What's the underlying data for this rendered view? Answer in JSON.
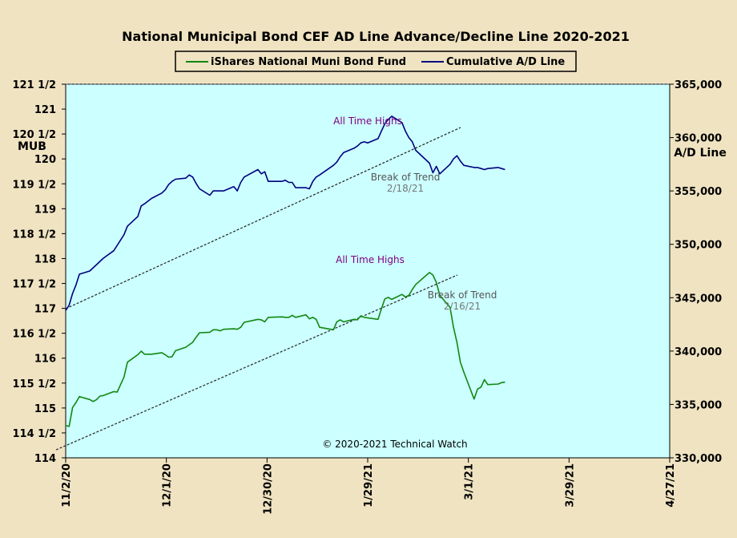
{
  "chart_data": {
    "type": "line",
    "title": "National Municipal Bond CEF AD Line Advance/Decline Line 2020-2021",
    "ylabel_left": "MUB",
    "ylabel_right": "A/D Line",
    "x_ticks": [
      "11/2/20",
      "12/1/20",
      "12/30/20",
      "1/29/21",
      "3/1/21",
      "3/29/21",
      "4/27/21"
    ],
    "x_range": [
      "2020-11-02",
      "2021-04-27"
    ],
    "y_left_ticks": [
      "114",
      "114 1/2",
      "115",
      "115 1/2",
      "116",
      "116 1/2",
      "117",
      "117 1/2",
      "118",
      "118 1/2",
      "119",
      "119 1/2",
      "120",
      "120 1/2",
      "121",
      "121 1/2"
    ],
    "y_left_range": [
      114,
      121.5
    ],
    "y_right_ticks": [
      "330,000",
      "335,000",
      "340,000",
      "345,000",
      "350,000",
      "355,000",
      "360,000",
      "365,000"
    ],
    "y_right_range": [
      330000,
      365000
    ],
    "legend": [
      "iShares National Muni Bond Fund",
      "Cumulative A/D Line"
    ],
    "legend_position": "top-center",
    "grid": false,
    "colors": {
      "muni": "#118811",
      "ad": "#000080",
      "plot_bg": "#ccffff",
      "page_bg": "#efe3c2",
      "annotation": "#800080",
      "break_text": "#555555",
      "break_date": "#777777"
    },
    "series": [
      {
        "name": "iShares National Muni Bond Fund",
        "axis": "left",
        "x": [
          "2020-11-02",
          "2020-11-03",
          "2020-11-04",
          "2020-11-05",
          "2020-11-06",
          "2020-11-09",
          "2020-11-10",
          "2020-11-11",
          "2020-11-12",
          "2020-11-13",
          "2020-11-16",
          "2020-11-17",
          "2020-11-18",
          "2020-11-19",
          "2020-11-20",
          "2020-11-23",
          "2020-11-24",
          "2020-11-25",
          "2020-11-27",
          "2020-11-30",
          "2020-12-01",
          "2020-12-02",
          "2020-12-03",
          "2020-12-04",
          "2020-12-07",
          "2020-12-08",
          "2020-12-09",
          "2020-12-10",
          "2020-12-11",
          "2020-12-14",
          "2020-12-15",
          "2020-12-16",
          "2020-12-17",
          "2020-12-18",
          "2020-12-21",
          "2020-12-22",
          "2020-12-23",
          "2020-12-24",
          "2020-12-28",
          "2020-12-29",
          "2020-12-30",
          "2020-12-31",
          "2021-01-04",
          "2021-01-05",
          "2021-01-06",
          "2021-01-07",
          "2021-01-08",
          "2021-01-11",
          "2021-01-12",
          "2021-01-13",
          "2021-01-14",
          "2021-01-15",
          "2021-01-19",
          "2021-01-20",
          "2021-01-21",
          "2021-01-22",
          "2021-01-25",
          "2021-01-26",
          "2021-01-27",
          "2021-01-28",
          "2021-01-29",
          "2021-02-01",
          "2021-02-02",
          "2021-02-03",
          "2021-02-04",
          "2021-02-05",
          "2021-02-08",
          "2021-02-09",
          "2021-02-10",
          "2021-02-11",
          "2021-02-12",
          "2021-02-16",
          "2021-02-17",
          "2021-02-18",
          "2021-02-19",
          "2021-02-22",
          "2021-02-23",
          "2021-02-24",
          "2021-02-25",
          "2021-02-26",
          "2021-03-01",
          "2021-03-02",
          "2021-03-03",
          "2021-03-04",
          "2021-03-05",
          "2021-03-08",
          "2021-03-09",
          "2021-03-10"
        ],
        "values": [
          114.65,
          114.63,
          115.01,
          115.11,
          115.23,
          115.17,
          115.13,
          115.17,
          115.24,
          115.25,
          115.33,
          115.32,
          115.47,
          115.62,
          115.92,
          116.07,
          116.14,
          116.08,
          116.08,
          116.11,
          116.07,
          116.02,
          116.03,
          116.15,
          116.22,
          116.27,
          116.32,
          116.42,
          116.51,
          116.52,
          116.57,
          116.57,
          116.55,
          116.58,
          116.59,
          116.58,
          116.62,
          116.72,
          116.78,
          116.77,
          116.73,
          116.82,
          116.83,
          116.82,
          116.82,
          116.86,
          116.82,
          116.87,
          116.79,
          116.82,
          116.78,
          116.62,
          116.57,
          116.73,
          116.77,
          116.73,
          116.78,
          116.77,
          116.85,
          116.82,
          116.81,
          116.78,
          116.99,
          117.19,
          117.22,
          117.18,
          117.28,
          117.23,
          117.26,
          117.38,
          117.48,
          117.72,
          117.67,
          117.52,
          117.26,
          117.02,
          116.62,
          116.32,
          115.92,
          115.72,
          115.18,
          115.38,
          115.42,
          115.57,
          115.47,
          115.48,
          115.51,
          115.52
        ]
      },
      {
        "name": "Cumulative A/D Line",
        "axis": "right",
        "x": [
          "2020-11-02",
          "2020-11-03",
          "2020-11-04",
          "2020-11-05",
          "2020-11-06",
          "2020-11-09",
          "2020-11-10",
          "2020-11-11",
          "2020-11-12",
          "2020-11-13",
          "2020-11-16",
          "2020-11-17",
          "2020-11-18",
          "2020-11-19",
          "2020-11-20",
          "2020-11-23",
          "2020-11-24",
          "2020-11-25",
          "2020-11-27",
          "2020-11-30",
          "2020-12-01",
          "2020-12-02",
          "2020-12-03",
          "2020-12-04",
          "2020-12-07",
          "2020-12-08",
          "2020-12-09",
          "2020-12-10",
          "2020-12-11",
          "2020-12-14",
          "2020-12-15",
          "2020-12-16",
          "2020-12-17",
          "2020-12-18",
          "2020-12-21",
          "2020-12-22",
          "2020-12-23",
          "2020-12-24",
          "2020-12-28",
          "2020-12-29",
          "2020-12-30",
          "2020-12-31",
          "2021-01-04",
          "2021-01-05",
          "2021-01-06",
          "2021-01-07",
          "2021-01-08",
          "2021-01-11",
          "2021-01-12",
          "2021-01-13",
          "2021-01-14",
          "2021-01-15",
          "2021-01-19",
          "2021-01-20",
          "2021-01-21",
          "2021-01-22",
          "2021-01-25",
          "2021-01-26",
          "2021-01-27",
          "2021-01-28",
          "2021-01-29",
          "2021-02-01",
          "2021-02-02",
          "2021-02-03",
          "2021-02-04",
          "2021-02-05",
          "2021-02-08",
          "2021-02-09",
          "2021-02-10",
          "2021-02-11",
          "2021-02-12",
          "2021-02-16",
          "2021-02-17",
          "2021-02-18",
          "2021-02-19",
          "2021-02-22",
          "2021-02-23",
          "2021-02-24",
          "2021-02-25",
          "2021-02-26",
          "2021-03-01",
          "2021-03-02",
          "2021-03-03",
          "2021-03-04",
          "2021-03-05",
          "2021-03-08",
          "2021-03-09",
          "2021-03-10"
        ],
        "values": [
          343800,
          344300,
          345400,
          346200,
          347200,
          347500,
          347800,
          348100,
          348400,
          348700,
          349400,
          349900,
          350400,
          350900,
          351700,
          352600,
          353600,
          353800,
          354300,
          354800,
          355100,
          355600,
          355900,
          356100,
          356200,
          356500,
          356300,
          355700,
          355200,
          354600,
          355000,
          355000,
          355000,
          355000,
          355400,
          355000,
          355800,
          356300,
          357000,
          356600,
          356800,
          355900,
          355900,
          356000,
          355800,
          355800,
          355300,
          355300,
          355200,
          355900,
          356300,
          356500,
          357400,
          357700,
          358200,
          358600,
          359000,
          359200,
          359500,
          359600,
          359500,
          359900,
          360600,
          361300,
          361700,
          362000,
          361400,
          360600,
          360000,
          359600,
          358800,
          357600,
          356700,
          357300,
          356600,
          357500,
          358000,
          358300,
          357800,
          357400,
          357200,
          357200,
          357100,
          357000,
          357100,
          357200,
          357100,
          357000
        ]
      }
    ],
    "annotations": {
      "ad_high": "All Time Highs",
      "ad_break_label": "Break of Trend",
      "ad_break_date": "2/18/21",
      "muni_high": "All Time Highs",
      "muni_break_label": "Break of Trend",
      "muni_break_date": "2/16/21",
      "copyright": "© 2020-2021 Technical Watch"
    }
  }
}
